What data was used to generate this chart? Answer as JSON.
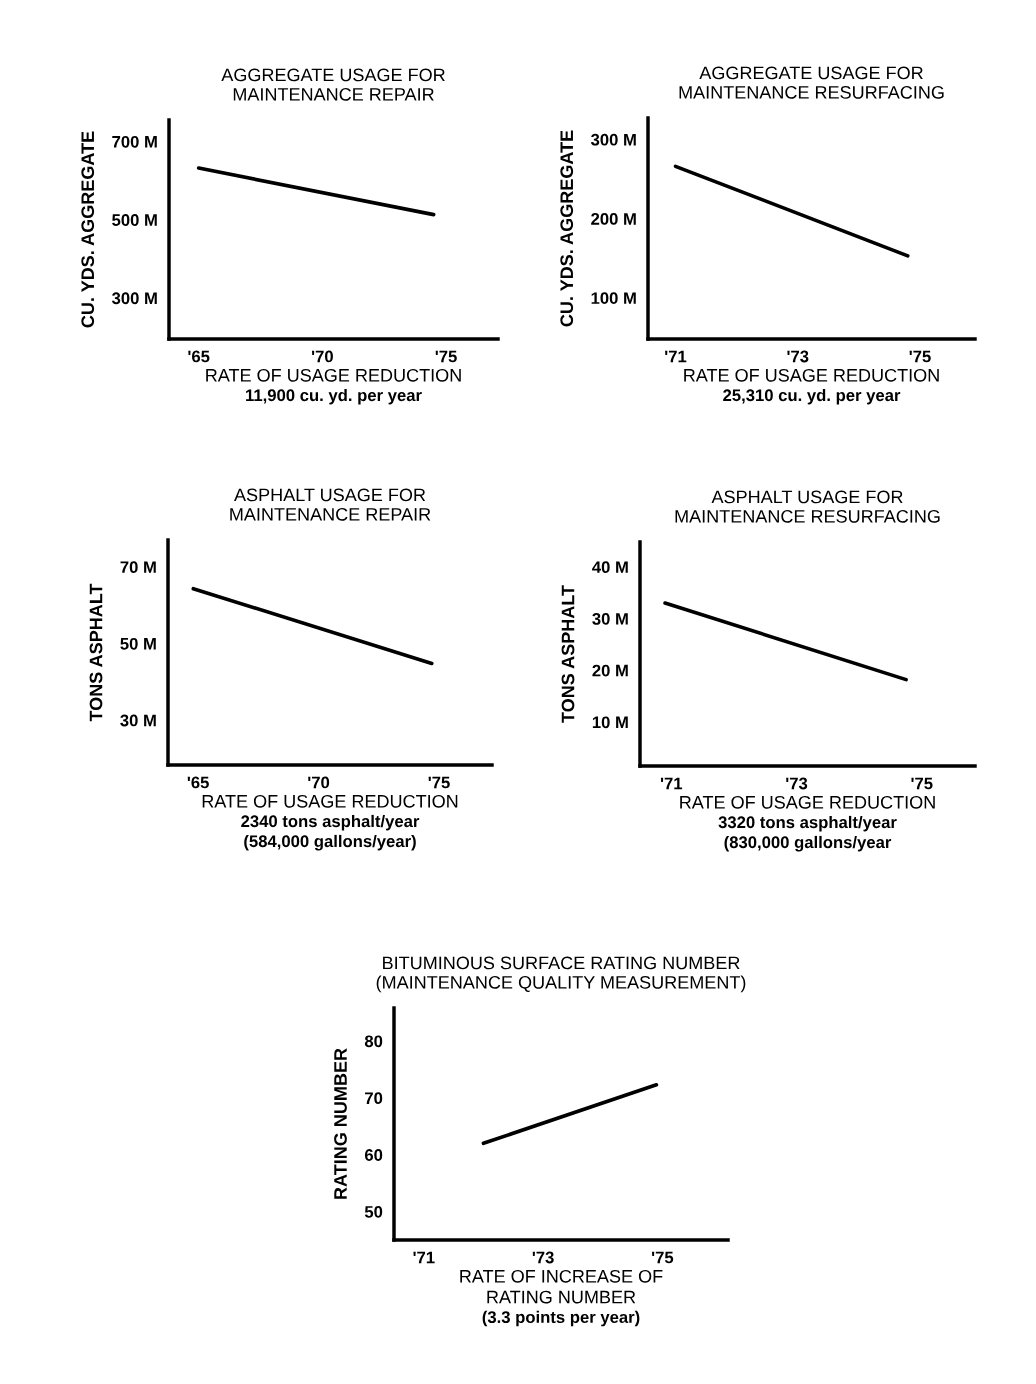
{
  "chart_data": [
    {
      "type": "line",
      "title": "AGGREGATE USAGE FOR\nMAINTENANCE REPAIR",
      "ylabel": "CU. YDS. AGGREGATE",
      "xlabel": "RATE OF USAGE REDUCTION",
      "annotations": [
        "11,900 cu. yd. per year"
      ],
      "x": [
        1965,
        1974.5
      ],
      "series": [
        {
          "color": "#000000",
          "values": [
            632,
            513
          ]
        }
      ],
      "xlim": [
        1963.8,
        1977.1
      ],
      "ylim": [
        195,
        755
      ],
      "xticks": [
        {
          "value": 1965,
          "label": "'65"
        },
        {
          "value": 1970,
          "label": "'70"
        },
        {
          "value": 1975,
          "label": "'75"
        }
      ],
      "yticks": [
        {
          "value": 300,
          "label": "300 M"
        },
        {
          "value": 500,
          "label": "500 M"
        },
        {
          "value": 700,
          "label": "700 M"
        }
      ]
    },
    {
      "type": "line",
      "title": "AGGREGATE USAGE FOR\nMAINTENANCE RESURFACING",
      "ylabel": "CU. YDS. AGGREGATE",
      "xlabel": "RATE OF USAGE REDUCTION",
      "annotations": [
        "25,310 cu. yd. per year"
      ],
      "x": [
        1971,
        1974.8
      ],
      "series": [
        {
          "color": "#000000",
          "values": [
            266,
            153
          ]
        }
      ],
      "xlim": [
        1970.55,
        1975.9
      ],
      "ylim": [
        48,
        327
      ],
      "xticks": [
        {
          "value": 1971,
          "label": "'71"
        },
        {
          "value": 1973,
          "label": "'73"
        },
        {
          "value": 1975,
          "label": "'75"
        }
      ],
      "yticks": [
        {
          "value": 100,
          "label": "100 M"
        },
        {
          "value": 200,
          "label": "200 M"
        },
        {
          "value": 300,
          "label": "300 M"
        }
      ]
    },
    {
      "type": "line",
      "title": "ASPHALT USAGE FOR\nMAINTENANCE REPAIR",
      "ylabel": "TONS ASPHALT",
      "xlabel": "RATE OF USAGE REDUCTION",
      "annotations": [
        "2340 tons asphalt/year",
        "(584,000 gallons/year)"
      ],
      "x": [
        1964.8,
        1974.7
      ],
      "series": [
        {
          "color": "#000000",
          "values": [
            64.3,
            44.8
          ]
        }
      ],
      "xlim": [
        1963.75,
        1977.2
      ],
      "ylim": [
        18.3,
        77
      ],
      "xticks": [
        {
          "value": 1965,
          "label": "'65"
        },
        {
          "value": 1970,
          "label": "'70"
        },
        {
          "value": 1975,
          "label": "'75"
        }
      ],
      "yticks": [
        {
          "value": 30,
          "label": "30 M"
        },
        {
          "value": 50,
          "label": "50 M"
        },
        {
          "value": 70,
          "label": "70 M"
        }
      ]
    },
    {
      "type": "line",
      "title": "ASPHALT USAGE FOR\nMAINTENANCE RESURFACING",
      "ylabel": "TONS ASPHALT",
      "xlabel": "RATE OF USAGE REDUCTION",
      "annotations": [
        "3320 tons asphalt/year",
        "(830,000 gallons/year"
      ],
      "x": [
        1970.9,
        1974.75
      ],
      "series": [
        {
          "color": "#000000",
          "values": [
            33.0,
            18.2
          ]
        }
      ],
      "xlim": [
        1970.5,
        1975.85
      ],
      "ylim": [
        1.5,
        44.8
      ],
      "xticks": [
        {
          "value": 1971,
          "label": "'71"
        },
        {
          "value": 1973,
          "label": "'73"
        },
        {
          "value": 1975,
          "label": "'75"
        }
      ],
      "yticks": [
        {
          "value": 10,
          "label": "10 M"
        },
        {
          "value": 20,
          "label": "20 M"
        },
        {
          "value": 30,
          "label": "30 M"
        },
        {
          "value": 40,
          "label": "40 M"
        }
      ]
    },
    {
      "type": "line",
      "title": "BITUMINOUS SURFACE RATING NUMBER\n(MAINTENANCE QUALITY MEASUREMENT)",
      "ylabel": "RATING NUMBER",
      "xlabel": "RATE OF INCREASE OF\nRATING NUMBER",
      "annotations": [
        "(3.3 points per year)"
      ],
      "x": [
        1972,
        1974.9
      ],
      "series": [
        {
          "color": "#000000",
          "values": [
            62,
            72.3
          ]
        }
      ],
      "xlim": [
        1970.5,
        1976.1
      ],
      "ylim": [
        45,
        85.8
      ],
      "xticks": [
        {
          "value": 1971,
          "label": "'71"
        },
        {
          "value": 1973,
          "label": "'73"
        },
        {
          "value": 1975,
          "label": "'75"
        }
      ],
      "yticks": [
        50,
        60,
        70,
        80
      ]
    }
  ]
}
